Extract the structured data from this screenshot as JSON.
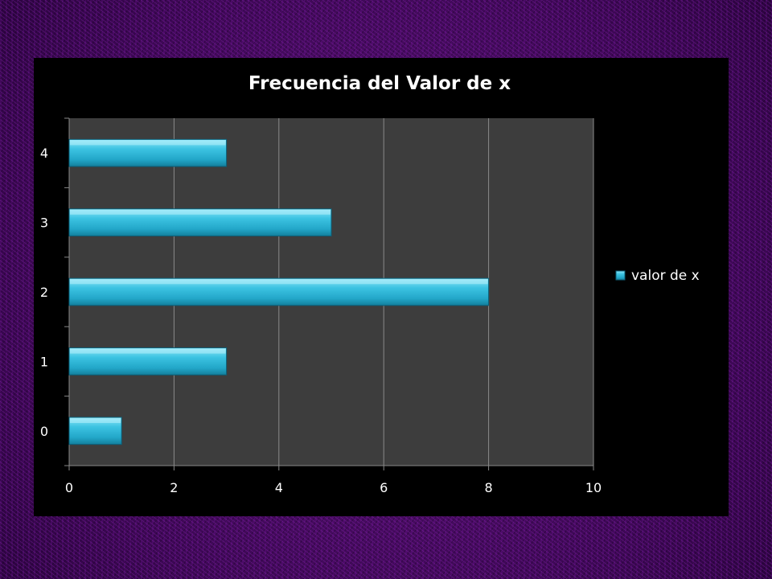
{
  "chart_data": {
    "type": "bar",
    "orientation": "horizontal",
    "title": "Frecuencia del Valor de x",
    "categories": [
      "0",
      "1",
      "2",
      "3",
      "4"
    ],
    "series": [
      {
        "name": "valor de x",
        "values": [
          1,
          3,
          8,
          5,
          3
        ],
        "color": "#2fb6d6"
      }
    ],
    "xlim": [
      0,
      10
    ],
    "x_ticks": [
      "0",
      "2",
      "4",
      "6",
      "8",
      "10"
    ],
    "xlabel": "",
    "ylabel": "",
    "grid": true,
    "legend_position": "right",
    "plot_background": "#3d3d3d",
    "chart_background": "#000000"
  }
}
